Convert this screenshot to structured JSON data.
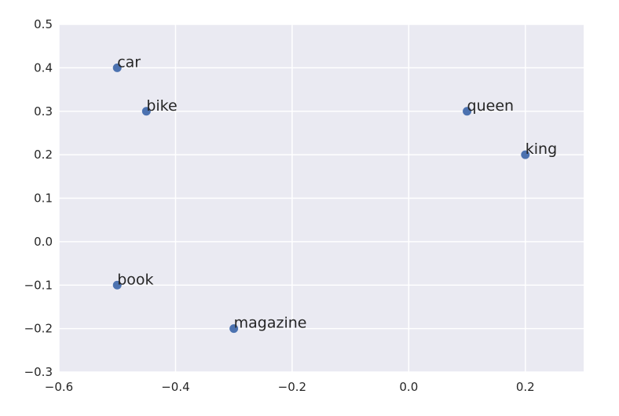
{
  "chart_data": {
    "type": "scatter",
    "title": "",
    "xlabel": "",
    "ylabel": "",
    "xlim": [
      -0.6,
      0.3
    ],
    "ylim": [
      -0.3,
      0.5
    ],
    "xticks": [
      -0.6,
      -0.4,
      -0.2,
      0.0,
      0.2
    ],
    "xtick_labels": [
      "−0.6",
      "−0.4",
      "−0.2",
      "0.0",
      "0.2"
    ],
    "yticks": [
      -0.3,
      -0.2,
      -0.1,
      0.0,
      0.1,
      0.2,
      0.3,
      0.4,
      0.5
    ],
    "ytick_labels": [
      "−0.3",
      "−0.2",
      "−0.1",
      "0.0",
      "0.1",
      "0.2",
      "0.3",
      "0.4",
      "0.5"
    ],
    "grid": true,
    "marker_color": "#4c72b0",
    "background_color": "#eaeaf2",
    "grid_color": "#ffffff",
    "points": [
      {
        "label": "car",
        "x": -0.5,
        "y": 0.4
      },
      {
        "label": "bike",
        "x": -0.45,
        "y": 0.3
      },
      {
        "label": "queen",
        "x": 0.1,
        "y": 0.3
      },
      {
        "label": "king",
        "x": 0.2,
        "y": 0.2
      },
      {
        "label": "book",
        "x": -0.5,
        "y": -0.1
      },
      {
        "label": "magazine",
        "x": -0.3,
        "y": -0.2
      }
    ]
  }
}
